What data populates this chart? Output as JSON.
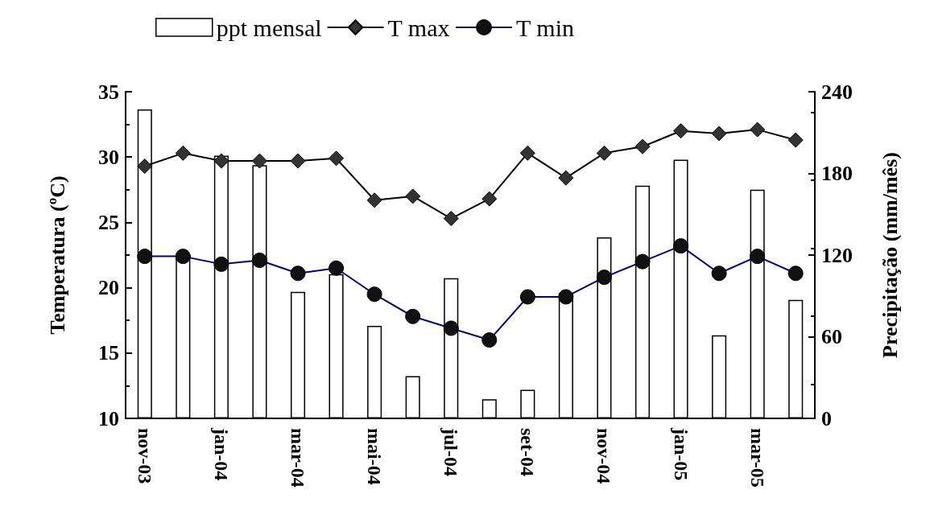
{
  "chart_data": {
    "type": "bar",
    "ylabel": "Temperatura (ºC)",
    "y2label": "Precipitação (mm/mês)",
    "categories": [
      "nov-03",
      null,
      "jan-04",
      null,
      "mar-04",
      null,
      "mai-04",
      null,
      "jul-04",
      null,
      "set-04",
      null,
      "nov-04",
      null,
      "jan-05",
      null,
      "mar-05",
      null
    ],
    "series": [
      {
        "name": "ppt mensal",
        "axis": "y2",
        "color": "#ffffff",
        "values": [
          227,
          120,
          193,
          186,
          93,
          106,
          68,
          31,
          103,
          14,
          21,
          92,
          133,
          171,
          190,
          61,
          168,
          87
        ]
      },
      {
        "name": "T max",
        "type": "line",
        "marker": "diamond",
        "color": "#000000",
        "values": [
          29.3,
          30.3,
          29.7,
          29.7,
          29.7,
          29.9,
          26.7,
          27.0,
          25.3,
          26.8,
          30.3,
          28.4,
          30.3,
          30.8,
          32.0,
          31.8,
          32.1,
          31.3
        ]
      },
      {
        "name": "T min",
        "type": "line",
        "marker": "circle",
        "color": "#000080",
        "values": [
          22.4,
          22.4,
          21.8,
          22.1,
          21.1,
          21.5,
          19.5,
          17.8,
          16.9,
          16.0,
          19.3,
          19.3,
          20.8,
          22.0,
          23.2,
          21.1,
          22.4,
          21.1
        ]
      }
    ],
    "ylim": [
      10,
      35
    ],
    "yticks": [
      10,
      15,
      20,
      25,
      30,
      35
    ],
    "y2lim": [
      0,
      240
    ],
    "y2ticks": [
      0,
      60,
      120,
      180,
      240
    ],
    "grid": false,
    "legend": "top"
  }
}
